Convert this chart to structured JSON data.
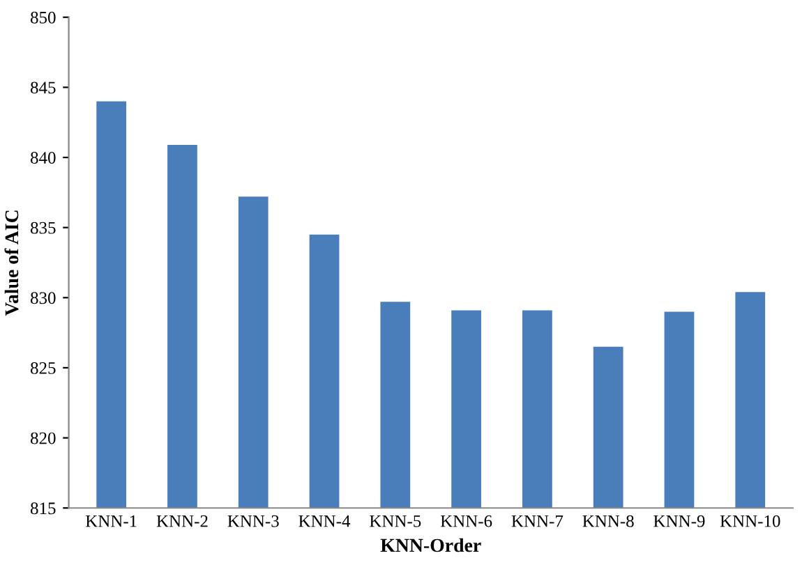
{
  "chart_data": {
    "type": "bar",
    "xlabel": "KNN-Order",
    "ylabel": "Value of AIC",
    "categories": [
      "KNN-1",
      "KNN-2",
      "KNN-3",
      "KNN-4",
      "KNN-5",
      "KNN-6",
      "KNN-7",
      "KNN-8",
      "KNN-9",
      "KNN-10"
    ],
    "values": [
      844.0,
      840.9,
      837.2,
      834.5,
      829.7,
      829.1,
      829.1,
      826.5,
      829.0,
      830.4
    ],
    "color": "#4a7ebb",
    "ylim": [
      815,
      850
    ],
    "yticks": [
      815,
      820,
      825,
      830,
      835,
      840,
      845,
      850
    ],
    "grid": false
  }
}
